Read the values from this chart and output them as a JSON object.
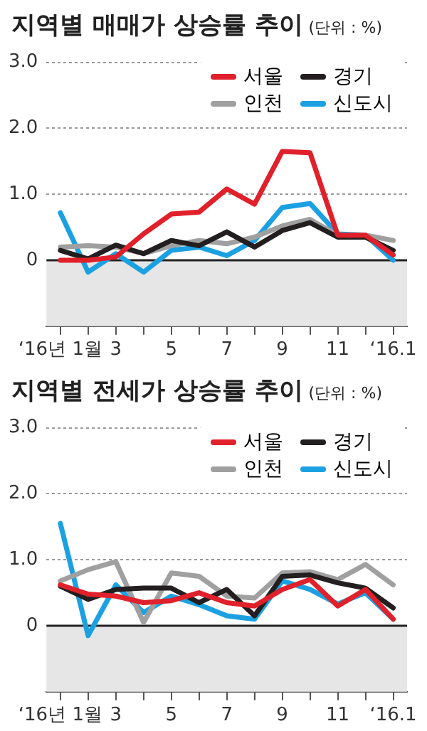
{
  "chart_data": [
    {
      "type": "line",
      "title": "지역별 매매가 상승률 추이",
      "subtitle": "(단위 : %)",
      "categories": [
        "‘16년 1월",
        null,
        "3",
        null,
        "5",
        null,
        "7",
        null,
        "9",
        null,
        "11",
        null,
        "‘16.1"
      ],
      "series": [
        {
          "name": "서울",
          "color": "#e0202a",
          "values": [
            0,
            0,
            0.05,
            0.4,
            0.7,
            0.73,
            1.08,
            0.85,
            1.65,
            1.63,
            0.38,
            0.38,
            0.08
          ]
        },
        {
          "name": "경기",
          "color": "#231f20",
          "values": [
            0.15,
            0.02,
            0.23,
            0.1,
            0.3,
            0.22,
            0.43,
            0.2,
            0.45,
            0.57,
            0.35,
            0.35,
            0.15
          ]
        },
        {
          "name": "인천",
          "color": "#a0a0a0",
          "values": [
            0.2,
            0.22,
            0.2,
            0.1,
            0.22,
            0.3,
            0.25,
            0.35,
            0.52,
            0.62,
            0.38,
            0.38,
            0.3
          ]
        },
        {
          "name": "신도시",
          "color": "#1ba1e2",
          "values": [
            0.72,
            -0.18,
            0.1,
            -0.18,
            0.15,
            0.2,
            0.07,
            0.3,
            0.8,
            0.86,
            0.4,
            0.38,
            0.0
          ]
        }
      ],
      "ylim": [
        -1,
        3
      ],
      "yticks": [
        0,
        {
          "value": 1,
          "label": "1.0"
        },
        {
          "value": 2,
          "label": "2.0"
        },
        {
          "value": 3,
          "label": "3.0"
        }
      ],
      "bands": [
        {
          "axis": "y",
          "from": -1,
          "to": 0,
          "color": "#e6e6e6"
        }
      ],
      "ref_lines": [
        {
          "axis": "y",
          "value": 0,
          "color": "#222222"
        }
      ],
      "grid": "y",
      "legend": "top right",
      "marker": "none",
      "line_style": "solid"
    },
    {
      "type": "line",
      "title": "지역별 전세가 상승률 추이",
      "subtitle": "(단위 : %)",
      "categories": [
        "‘16년 1월",
        null,
        "3",
        null,
        "5",
        null,
        "7",
        null,
        "9",
        null,
        "11",
        null,
        "‘16.1"
      ],
      "series": [
        {
          "name": "서울",
          "color": "#e0202a",
          "values": [
            0.62,
            0.48,
            0.45,
            0.35,
            0.38,
            0.5,
            0.35,
            0.3,
            0.55,
            0.7,
            0.3,
            0.55,
            0.1
          ]
        },
        {
          "name": "경기",
          "color": "#231f20",
          "values": [
            0.6,
            0.4,
            0.55,
            0.57,
            0.57,
            0.35,
            0.55,
            0.15,
            0.75,
            0.77,
            0.65,
            0.57,
            0.27
          ]
        },
        {
          "name": "인천",
          "color": "#a0a0a0",
          "values": [
            0.68,
            0.85,
            0.97,
            0.05,
            0.8,
            0.75,
            0.45,
            0.42,
            0.8,
            0.82,
            0.7,
            0.93,
            0.62
          ]
        },
        {
          "name": "신도시",
          "color": "#1ba1e2",
          "values": [
            1.55,
            -0.15,
            0.62,
            0.2,
            0.45,
            0.32,
            0.15,
            0.1,
            0.68,
            0.55,
            0.33,
            0.5,
            0.1
          ]
        }
      ],
      "ylim": [
        -1,
        3
      ],
      "yticks": [
        0,
        {
          "value": 1,
          "label": "1.0"
        },
        {
          "value": 2,
          "label": "2.0"
        },
        {
          "value": 3,
          "label": "3.0"
        }
      ],
      "bands": [
        {
          "axis": "y",
          "from": -1,
          "to": 0,
          "color": "#e6e6e6"
        }
      ],
      "ref_lines": [
        {
          "axis": "y",
          "value": 0,
          "color": "#222222"
        }
      ],
      "grid": "y",
      "legend": "top right",
      "marker": "none",
      "line_style": "solid"
    }
  ]
}
